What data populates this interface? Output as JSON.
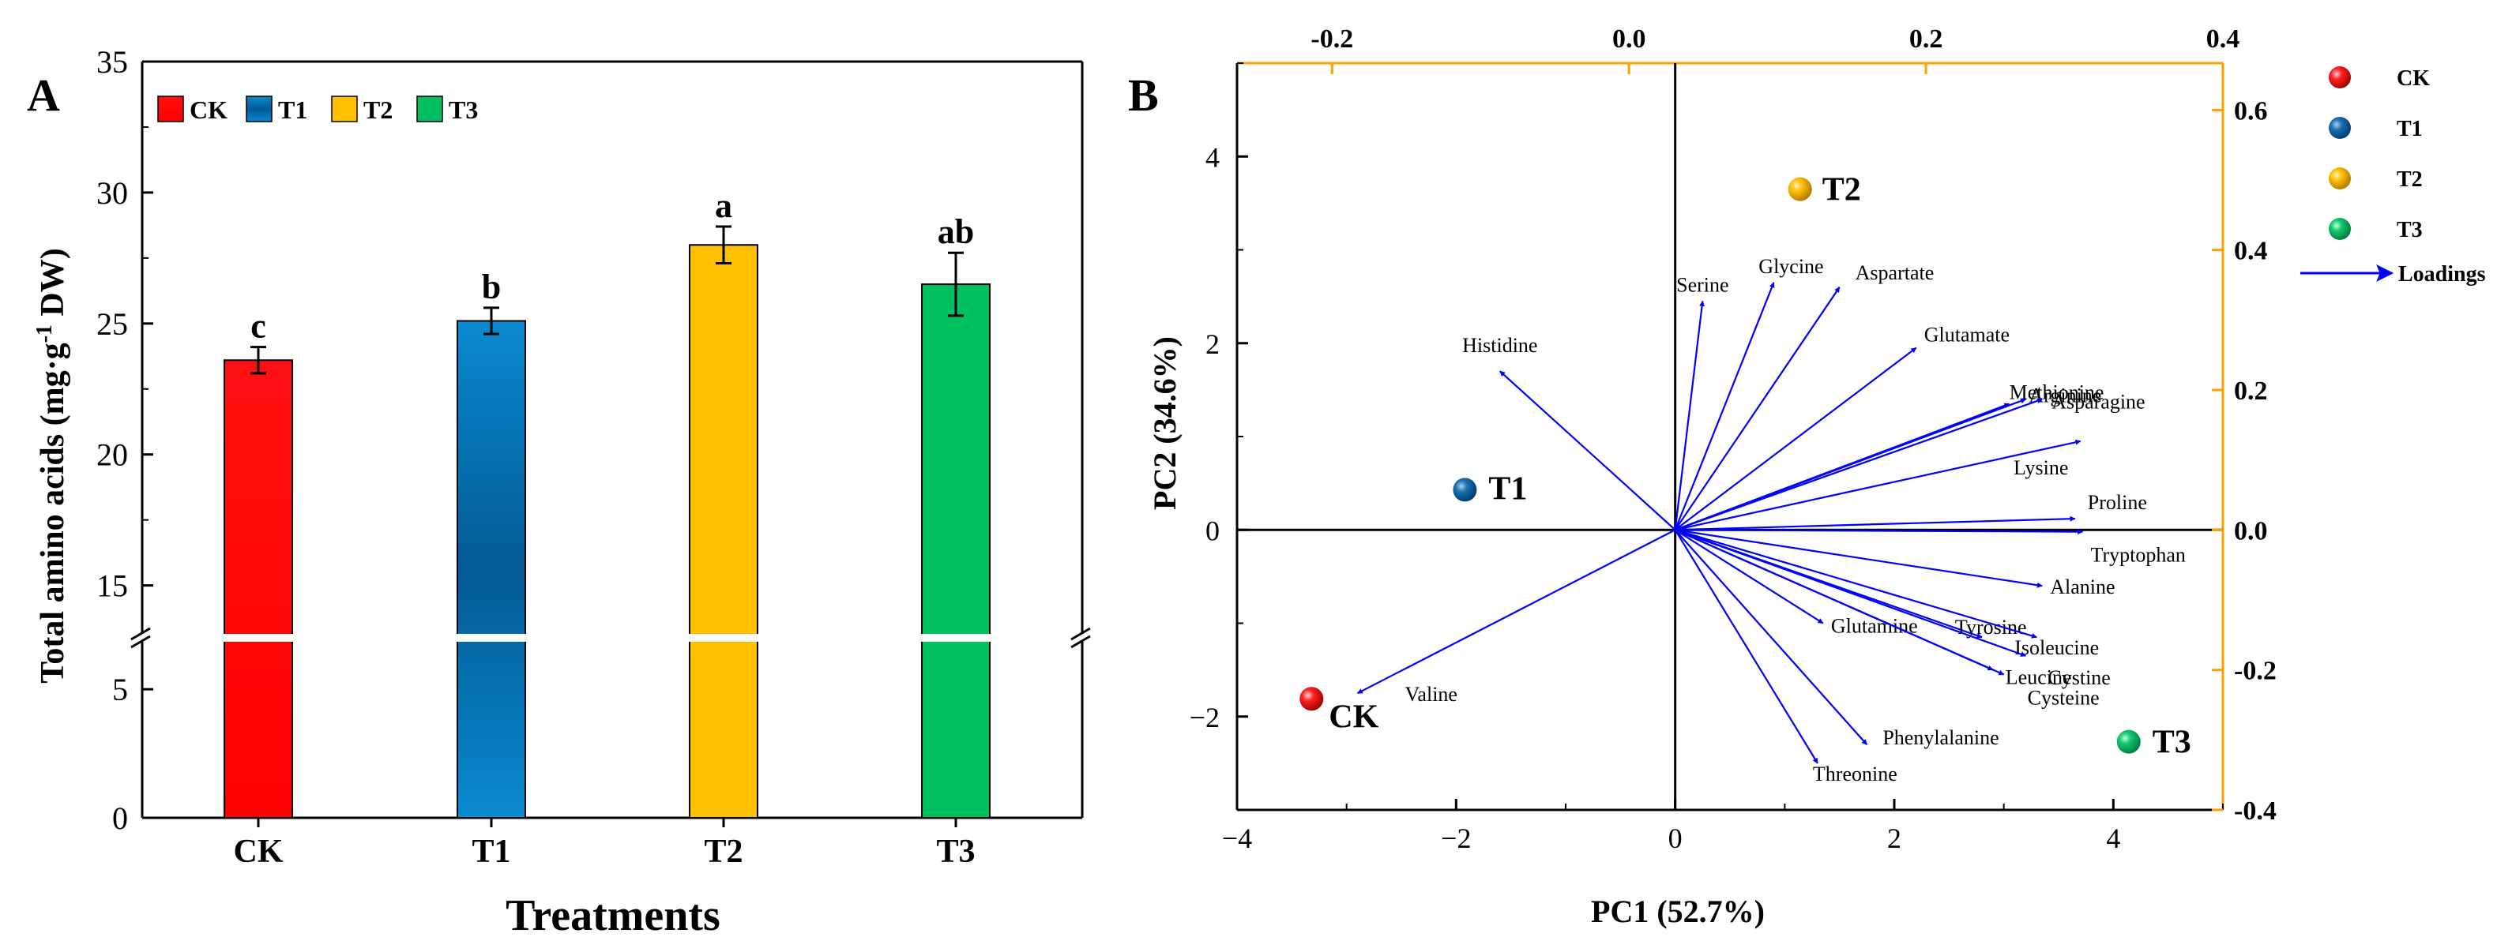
{
  "figure": {
    "panel_a_label": "A",
    "panel_b_label": "B"
  },
  "colors": {
    "CK": "#ff0000",
    "T1": "#0468a8",
    "T2": "#ffc000",
    "T3": "#00c060",
    "arrow": "#0000ff",
    "top_axis": "#ffa000"
  },
  "chart_data": [
    {
      "type": "bar",
      "panel": "A",
      "title": "",
      "categories": [
        "CK",
        "T1",
        "T2",
        "T3"
      ],
      "values": [
        23.6,
        25.1,
        28.0,
        26.5
      ],
      "errors": [
        0.5,
        0.5,
        0.7,
        1.2
      ],
      "significance": [
        "c",
        "b",
        "a",
        "ab"
      ],
      "xlabel": "Treatments",
      "ylabel_main": "Total amino acids (mg·g",
      "ylabel_sup": "-1",
      "ylabel_tail": " DW)",
      "axis_break": true,
      "lower_ylim": [
        0,
        7
      ],
      "lower_yticks": [
        0,
        5
      ],
      "upper_ylim": [
        13,
        35
      ],
      "upper_yticks": [
        15,
        20,
        25,
        30,
        35
      ],
      "legend": [
        "CK",
        "T1",
        "T2",
        "T3"
      ],
      "legend_position": "top-left"
    },
    {
      "type": "scatter",
      "subtype": "pca-biplot",
      "panel": "B",
      "xlabel": "PC1 (52.7%)",
      "ylabel": "PC2 (34.6%)",
      "xlim": [
        -4,
        5
      ],
      "ylim": [
        -3,
        5
      ],
      "xticks": [
        -4,
        -2,
        0,
        2,
        4
      ],
      "yticks": [
        -2,
        0,
        2,
        4
      ],
      "top_axis_lim": [
        -0.264,
        0.4
      ],
      "top_axis_ticks": [
        "-0.2",
        "0.0",
        "0.2",
        "0.4"
      ],
      "top_axis_tick_values": [
        -0.2,
        0.0,
        0.2,
        0.4
      ],
      "right_axis_lim": [
        -0.4,
        0.667
      ],
      "right_axis_ticks": [
        "0.6",
        "0.4",
        "0.2",
        "0.0",
        "-0.2",
        "-0.4"
      ],
      "right_axis_tick_values": [
        0.6,
        0.4,
        0.2,
        0.0,
        -0.2,
        -0.4
      ],
      "scores": [
        {
          "name": "CK",
          "x": -3.32,
          "y": -1.81
        },
        {
          "name": "T1",
          "x": -1.92,
          "y": 0.43
        },
        {
          "name": "T2",
          "x": 1.14,
          "y": 3.65
        },
        {
          "name": "T3",
          "x": 4.14,
          "y": -2.27
        }
      ],
      "loadings": [
        {
          "name": "Histidine",
          "x": -1.6,
          "y": 1.7
        },
        {
          "name": "Valine",
          "x": -2.9,
          "y": -1.75
        },
        {
          "name": "Serine",
          "x": 0.25,
          "y": 2.45
        },
        {
          "name": "Glycine",
          "x": 0.9,
          "y": 2.65
        },
        {
          "name": "Aspartate",
          "x": 1.5,
          "y": 2.6
        },
        {
          "name": "Glutamate",
          "x": 2.2,
          "y": 1.95
        },
        {
          "name": "Methionine",
          "x": 3.05,
          "y": 1.35
        },
        {
          "name": "Arginine",
          "x": 3.2,
          "y": 1.4
        },
        {
          "name": "Asparagine",
          "x": 3.35,
          "y": 1.4
        },
        {
          "name": "Lysine",
          "x": 3.7,
          "y": 0.95
        },
        {
          "name": "Proline",
          "x": 3.65,
          "y": 0.12
        },
        {
          "name": "Tryptophan",
          "x": 3.72,
          "y": -0.02
        },
        {
          "name": "Alanine",
          "x": 3.35,
          "y": -0.6
        },
        {
          "name": "Glutamine",
          "x": 1.35,
          "y": -1.0
        },
        {
          "name": "Tyrosine",
          "x": 2.8,
          "y": -1.15
        },
        {
          "name": "Isoleucine",
          "x": 3.3,
          "y": -1.15
        },
        {
          "name": "Cystine",
          "x": 3.2,
          "y": -1.35
        },
        {
          "name": "Leucine",
          "x": 2.9,
          "y": -1.5
        },
        {
          "name": "Cysteine",
          "x": 3.0,
          "y": -1.55
        },
        {
          "name": "Phenylalanine",
          "x": 1.75,
          "y": -2.3
        },
        {
          "name": "Threonine",
          "x": 1.3,
          "y": -2.5
        }
      ],
      "legend": [
        "CK",
        "T1",
        "T2",
        "T3",
        "Loadings"
      ],
      "legend_position": "outside-right"
    }
  ]
}
